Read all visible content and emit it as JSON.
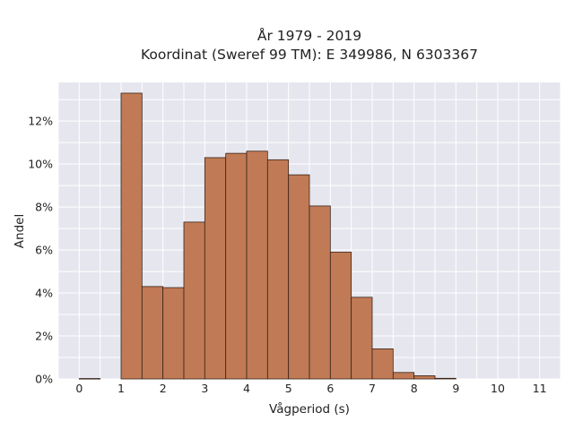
{
  "chart_data": {
    "type": "bar",
    "title_line1": "År 1979 - 2019",
    "title_line2": "Koordinat (Sweref 99 TM): E 349986, N 6303367",
    "xlabel": "Vågperiod (s)",
    "ylabel": "Andel",
    "bin_width": 0.5,
    "xlim": [
      -0.5,
      11.5
    ],
    "ylim": [
      0,
      13.8
    ],
    "x_ticks": [
      0,
      1,
      2,
      3,
      4,
      5,
      6,
      7,
      8,
      9,
      10,
      11
    ],
    "x_tick_labels": [
      "0",
      "1",
      "2",
      "3",
      "4",
      "5",
      "6",
      "7",
      "8",
      "9",
      "10",
      "11"
    ],
    "y_ticks": [
      0,
      2,
      4,
      6,
      8,
      10,
      12
    ],
    "y_tick_labels": [
      "0%",
      "2%",
      "4%",
      "6%",
      "8%",
      "10%",
      "12%"
    ],
    "bins": [
      {
        "start": 0.0,
        "value": 0.02
      },
      {
        "start": 1.0,
        "value": 13.3
      },
      {
        "start": 1.5,
        "value": 4.3
      },
      {
        "start": 2.0,
        "value": 4.25
      },
      {
        "start": 2.5,
        "value": 7.3
      },
      {
        "start": 3.0,
        "value": 10.3
      },
      {
        "start": 3.5,
        "value": 10.5
      },
      {
        "start": 4.0,
        "value": 10.6
      },
      {
        "start": 4.5,
        "value": 10.2
      },
      {
        "start": 5.0,
        "value": 9.5
      },
      {
        "start": 5.5,
        "value": 8.05
      },
      {
        "start": 6.0,
        "value": 5.9
      },
      {
        "start": 6.5,
        "value": 3.8
      },
      {
        "start": 7.0,
        "value": 1.4
      },
      {
        "start": 7.5,
        "value": 0.3
      },
      {
        "start": 8.0,
        "value": 0.15
      },
      {
        "start": 8.5,
        "value": 0.03
      }
    ],
    "grid": true,
    "colors": {
      "bar_fill": "#c07a55",
      "bar_edge": "#3a2418",
      "plot_background": "#e6e6ef",
      "grid": "#ffffff"
    }
  }
}
